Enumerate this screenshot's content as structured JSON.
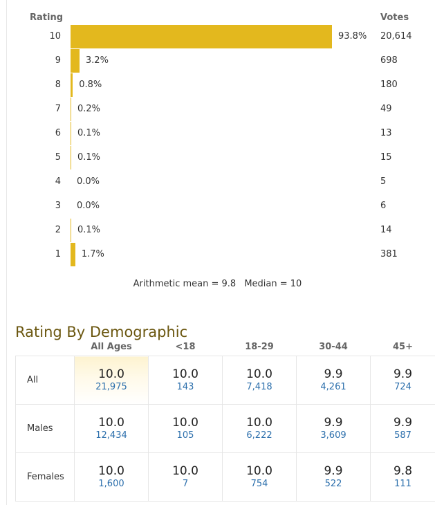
{
  "histogram": {
    "rating_header": "Rating",
    "votes_header": "Votes",
    "bar_color": "#e3b81e",
    "rows": [
      {
        "rating": "10",
        "percent_label": "93.8%",
        "percent": 93.8,
        "votes": "20,614"
      },
      {
        "rating": "9",
        "percent_label": "3.2%",
        "percent": 3.2,
        "votes": "698"
      },
      {
        "rating": "8",
        "percent_label": "0.8%",
        "percent": 0.8,
        "votes": "180"
      },
      {
        "rating": "7",
        "percent_label": "0.2%",
        "percent": 0.2,
        "votes": "49"
      },
      {
        "rating": "6",
        "percent_label": "0.1%",
        "percent": 0.1,
        "votes": "13"
      },
      {
        "rating": "5",
        "percent_label": "0.1%",
        "percent": 0.1,
        "votes": "15"
      },
      {
        "rating": "4",
        "percent_label": "0.0%",
        "percent": 0.0,
        "votes": "5"
      },
      {
        "rating": "3",
        "percent_label": "0.0%",
        "percent": 0.0,
        "votes": "6"
      },
      {
        "rating": "2",
        "percent_label": "0.1%",
        "percent": 0.1,
        "votes": "14"
      },
      {
        "rating": "1",
        "percent_label": "1.7%",
        "percent": 1.7,
        "votes": "381"
      }
    ],
    "mean_label": "Arithmetic mean = 9.8",
    "median_label": "Median = 10"
  },
  "demographic": {
    "title": "Rating By Demographic",
    "columns": [
      "All Ages",
      "<18",
      "18-29",
      "30-44",
      "45+"
    ],
    "rows": [
      {
        "label": "All",
        "cells": [
          {
            "score": "10.0",
            "count": "21,975"
          },
          {
            "score": "10.0",
            "count": "143"
          },
          {
            "score": "10.0",
            "count": "7,418"
          },
          {
            "score": "9.9",
            "count": "4,261"
          },
          {
            "score": "9.9",
            "count": "724"
          }
        ]
      },
      {
        "label": "Males",
        "cells": [
          {
            "score": "10.0",
            "count": "12,434"
          },
          {
            "score": "10.0",
            "count": "105"
          },
          {
            "score": "10.0",
            "count": "6,222"
          },
          {
            "score": "9.9",
            "count": "3,609"
          },
          {
            "score": "9.9",
            "count": "587"
          }
        ]
      },
      {
        "label": "Females",
        "cells": [
          {
            "score": "10.0",
            "count": "1,600"
          },
          {
            "score": "10.0",
            "count": "7"
          },
          {
            "score": "10.0",
            "count": "754"
          },
          {
            "score": "9.9",
            "count": "522"
          },
          {
            "score": "9.8",
            "count": "111"
          }
        ]
      }
    ]
  }
}
